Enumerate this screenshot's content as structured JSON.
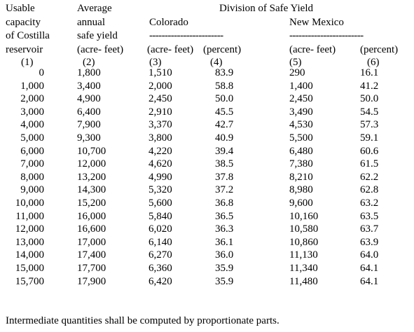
{
  "header": {
    "col1": [
      "Usable",
      "capacity",
      "of Costilla",
      "reservoir",
      "(1)"
    ],
    "col2": [
      "Average",
      "annual",
      "safe yield",
      "(acre- feet)",
      "(2)"
    ],
    "division": "Division of Safe Yield",
    "colorado": {
      "name": "Colorado",
      "rule": "------------------------",
      "units": [
        "(acre- feet)",
        "(percent)"
      ],
      "numbers": [
        "(3)",
        "(4)"
      ]
    },
    "new_mexico": {
      "name": "New Mexico",
      "rule": "------------------------",
      "units": [
        "(acre- feet)",
        "(percent)"
      ],
      "numbers": [
        "(5)",
        "(6)"
      ]
    }
  },
  "table": {
    "rows": [
      [
        "0",
        "1,800",
        "1,510",
        "83.9",
        "290",
        "16.1"
      ],
      [
        "1,000",
        "3,400",
        "2,000",
        "58.8",
        "1,400",
        "41.2"
      ],
      [
        "2,000",
        "4,900",
        "2,450",
        "50.0",
        "2,450",
        "50.0"
      ],
      [
        "3,000",
        "6,400",
        "2,910",
        "45.5",
        "3,490",
        "54.5"
      ],
      [
        "4,000",
        "7,900",
        "3,370",
        "42.7",
        "4,530",
        "57.3"
      ],
      [
        "5,000",
        "9,300",
        "3,800",
        "40.9",
        "5,500",
        "59.1"
      ],
      [
        "6,000",
        "10,700",
        "4,220",
        "39.4",
        "6,480",
        "60.6"
      ],
      [
        "7,000",
        "12,000",
        "4,620",
        "38.5",
        "7,380",
        "61.5"
      ],
      [
        "8,000",
        "13,200",
        "4,990",
        "37.8",
        "8,210",
        "62.2"
      ],
      [
        "9,000",
        "14,300",
        "5,320",
        "37.2",
        "8,980",
        "62.8"
      ],
      [
        "10,000",
        "15,200",
        "5,600",
        "36.8",
        "9,600",
        "63.2"
      ],
      [
        "11,000",
        "16,000",
        "5,840",
        "36.5",
        "10,160",
        "63.5"
      ],
      [
        "12,000",
        "16,600",
        "6,020",
        "36.3",
        "10,580",
        "63.7"
      ],
      [
        "13,000",
        "17,000",
        "6,140",
        "36.1",
        "10,860",
        "63.9"
      ],
      [
        "14,000",
        "17,400",
        "6,270",
        "36.0",
        "11,130",
        "64.0"
      ],
      [
        "15,000",
        "17,700",
        "6,360",
        "35.9",
        "11,340",
        "64.1"
      ],
      [
        "15,700",
        "17,900",
        "6,420",
        "35.9",
        "11,480",
        "64.1"
      ]
    ]
  },
  "footnote": "Intermediate quantities shall be computed by proportionate parts."
}
